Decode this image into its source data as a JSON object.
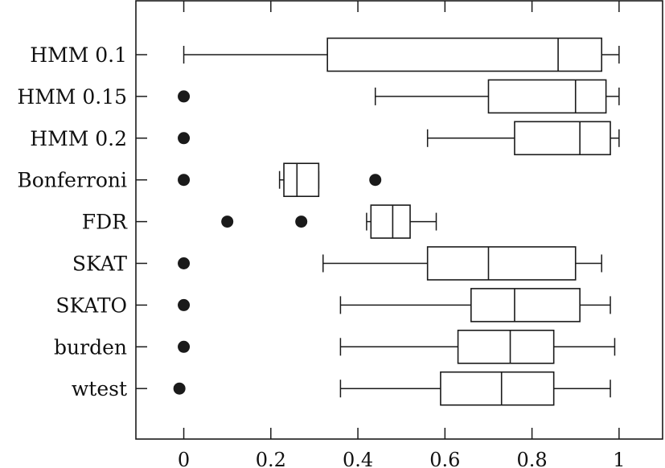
{
  "chart_data": {
    "type": "boxplot",
    "orientation": "horizontal",
    "title": "",
    "xlabel": "",
    "ylabel": "",
    "xlim": [
      -0.11,
      1.1
    ],
    "xticks": [
      0,
      0.2,
      0.4,
      0.6,
      0.8,
      1
    ],
    "xtick_labels": [
      "0",
      "0.2",
      "0.4",
      "0.6",
      "0.8",
      "1"
    ],
    "grid": false,
    "categories": [
      "HMM 0.1",
      "HMM 0.15",
      "HMM 0.2",
      "Bonferroni",
      "FDR",
      "SKAT",
      "SKATO",
      "burden",
      "wtest"
    ],
    "boxes": [
      {
        "whisker_low": 0.0,
        "q1": 0.33,
        "median": 0.86,
        "q3": 0.96,
        "whisker_high": 1.0,
        "outliers": []
      },
      {
        "whisker_low": 0.44,
        "q1": 0.7,
        "median": 0.9,
        "q3": 0.97,
        "whisker_high": 1.0,
        "outliers": [
          0.0
        ]
      },
      {
        "whisker_low": 0.56,
        "q1": 0.76,
        "median": 0.91,
        "q3": 0.98,
        "whisker_high": 1.0,
        "outliers": [
          0.0
        ]
      },
      {
        "whisker_low": 0.22,
        "q1": 0.23,
        "median": 0.26,
        "q3": 0.31,
        "whisker_high": 0.31,
        "outliers": [
          0.0,
          0.44
        ]
      },
      {
        "whisker_low": 0.42,
        "q1": 0.43,
        "median": 0.48,
        "q3": 0.52,
        "whisker_high": 0.58,
        "outliers": [
          0.1,
          0.27
        ]
      },
      {
        "whisker_low": 0.32,
        "q1": 0.56,
        "median": 0.7,
        "q3": 0.9,
        "whisker_high": 0.96,
        "outliers": [
          0.0
        ]
      },
      {
        "whisker_low": 0.36,
        "q1": 0.66,
        "median": 0.76,
        "q3": 0.91,
        "whisker_high": 0.98,
        "outliers": [
          0.0
        ]
      },
      {
        "whisker_low": 0.36,
        "q1": 0.63,
        "median": 0.75,
        "q3": 0.85,
        "whisker_high": 0.99,
        "outliers": [
          0.0
        ]
      },
      {
        "whisker_low": 0.36,
        "q1": 0.59,
        "median": 0.73,
        "q3": 0.85,
        "whisker_high": 0.98,
        "outliers": [
          -0.01
        ]
      }
    ],
    "colors": {
      "stroke": "#1a1a1a",
      "outlier": "#1a1a1a",
      "box_fill": "#ffffff"
    }
  }
}
